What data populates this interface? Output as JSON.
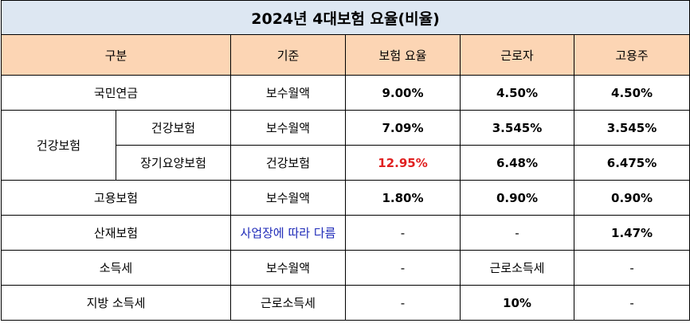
{
  "title": "2024년 4대보험 요율(비율)",
  "headers": {
    "category": "구분",
    "basis": "기준",
    "rate": "보험 요율",
    "worker": "근로자",
    "employer": "고용주"
  },
  "rows": {
    "pension": {
      "label": "국민연금",
      "basis": "보수월액",
      "rate": "9.00%",
      "worker": "4.50%",
      "employer": "4.50%"
    },
    "health_group": "건강보험",
    "health": {
      "label": "건강보험",
      "basis": "보수월액",
      "rate": "7.09%",
      "worker": "3.545%",
      "employer": "3.545%"
    },
    "ltc": {
      "label": "장기요양보험",
      "basis": "건강보험",
      "rate": "12.95%",
      "worker": "6.48%",
      "employer": "6.475%"
    },
    "employment": {
      "label": "고용보험",
      "basis": "보수월액",
      "rate": "1.80%",
      "worker": "0.90%",
      "employer": "0.90%"
    },
    "accident": {
      "label": "산재보험",
      "basis": "사업장에 따라 다름",
      "rate": "-",
      "worker": "-",
      "employer": "1.47%"
    },
    "income_tax": {
      "label": "소득세",
      "basis": "보수월액",
      "rate": "-",
      "worker": "근로소득세",
      "employer": "-"
    },
    "local_tax": {
      "label": "지방 소득세",
      "basis": "근로소득세",
      "rate": "-",
      "worker": "10%",
      "employer": "-"
    }
  },
  "colors": {
    "title_bg": "#dde7f2",
    "header_bg": "#fcd5b4",
    "highlight_red": "#e02020",
    "highlight_blue": "#1f2bb8"
  }
}
